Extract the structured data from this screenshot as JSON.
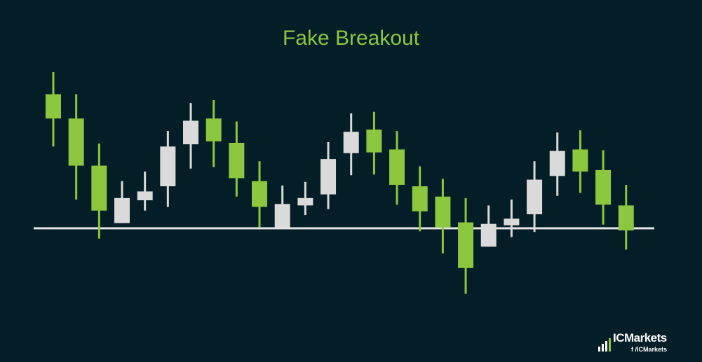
{
  "chart_data": {
    "type": "candlestick",
    "title": "Fake Breakout",
    "support_level": 0,
    "ylim": [
      -11,
      25
    ],
    "colors": {
      "background": "#031e27",
      "bullish": "#8dc63f",
      "bearish": "#dadada",
      "support_line": "#e6e6e6",
      "title": "#8dc63f"
    },
    "candles": [
      {
        "open": 18.2,
        "close": 14.9,
        "high": 21.2,
        "low": 11.1,
        "color": "green"
      },
      {
        "open": 14.9,
        "close": 8.5,
        "high": 18.2,
        "low": 3.9,
        "color": "green"
      },
      {
        "open": 8.5,
        "close": 2.4,
        "high": 11.5,
        "low": -1.4,
        "color": "green"
      },
      {
        "open": 0.7,
        "close": 4.1,
        "high": 6.4,
        "low": 0.7,
        "color": "white"
      },
      {
        "open": 3.8,
        "close": 5.0,
        "high": 7.7,
        "low": 2.4,
        "color": "white"
      },
      {
        "open": 5.7,
        "close": 11.1,
        "high": 13.2,
        "low": 2.9,
        "color": "white"
      },
      {
        "open": 11.4,
        "close": 14.6,
        "high": 17.0,
        "low": 8.1,
        "color": "white"
      },
      {
        "open": 14.9,
        "close": 11.8,
        "high": 17.4,
        "low": 8.3,
        "color": "green"
      },
      {
        "open": 11.6,
        "close": 6.8,
        "high": 14.5,
        "low": 4.3,
        "color": "green"
      },
      {
        "open": 6.4,
        "close": 2.9,
        "high": 9.1,
        "low": 0.1,
        "color": "green"
      },
      {
        "open": 0.1,
        "close": 3.3,
        "high": 5.8,
        "low": 0.1,
        "color": "white"
      },
      {
        "open": 3.1,
        "close": 4.1,
        "high": 6.3,
        "low": 1.8,
        "color": "white"
      },
      {
        "open": 4.6,
        "close": 9.4,
        "high": 11.7,
        "low": 2.6,
        "color": "white"
      },
      {
        "open": 10.2,
        "close": 13.1,
        "high": 15.6,
        "low": 7.2,
        "color": "white"
      },
      {
        "open": 13.4,
        "close": 10.3,
        "high": 15.8,
        "low": 7.3,
        "color": "green"
      },
      {
        "open": 10.7,
        "close": 5.9,
        "high": 13.2,
        "low": 3.2,
        "color": "green"
      },
      {
        "open": 5.7,
        "close": 2.3,
        "high": 8.4,
        "low": -0.4,
        "color": "green"
      },
      {
        "open": 4.3,
        "close": 0.1,
        "high": 6.7,
        "low": -3.4,
        "color": "green"
      },
      {
        "open": 0.8,
        "close": -5.4,
        "high": 4.1,
        "low": -8.9,
        "color": "green"
      },
      {
        "open": -2.5,
        "close": 0.6,
        "high": 3.1,
        "low": -2.5,
        "color": "white"
      },
      {
        "open": 0.4,
        "close": 1.3,
        "high": 3.9,
        "low": -1.2,
        "color": "white"
      },
      {
        "open": 1.9,
        "close": 6.6,
        "high": 9.1,
        "low": -0.5,
        "color": "white"
      },
      {
        "open": 7.1,
        "close": 10.5,
        "high": 13.0,
        "low": 4.4,
        "color": "white"
      },
      {
        "open": 10.7,
        "close": 7.7,
        "high": 13.3,
        "low": 4.8,
        "color": "green"
      },
      {
        "open": 7.9,
        "close": 3.2,
        "high": 10.6,
        "low": 0.5,
        "color": "green"
      },
      {
        "open": 3.1,
        "close": -0.3,
        "high": 5.9,
        "low": -2.9,
        "color": "green"
      }
    ]
  },
  "branding": {
    "main": "ICMarkets",
    "sub": "f /ICMarkets"
  }
}
